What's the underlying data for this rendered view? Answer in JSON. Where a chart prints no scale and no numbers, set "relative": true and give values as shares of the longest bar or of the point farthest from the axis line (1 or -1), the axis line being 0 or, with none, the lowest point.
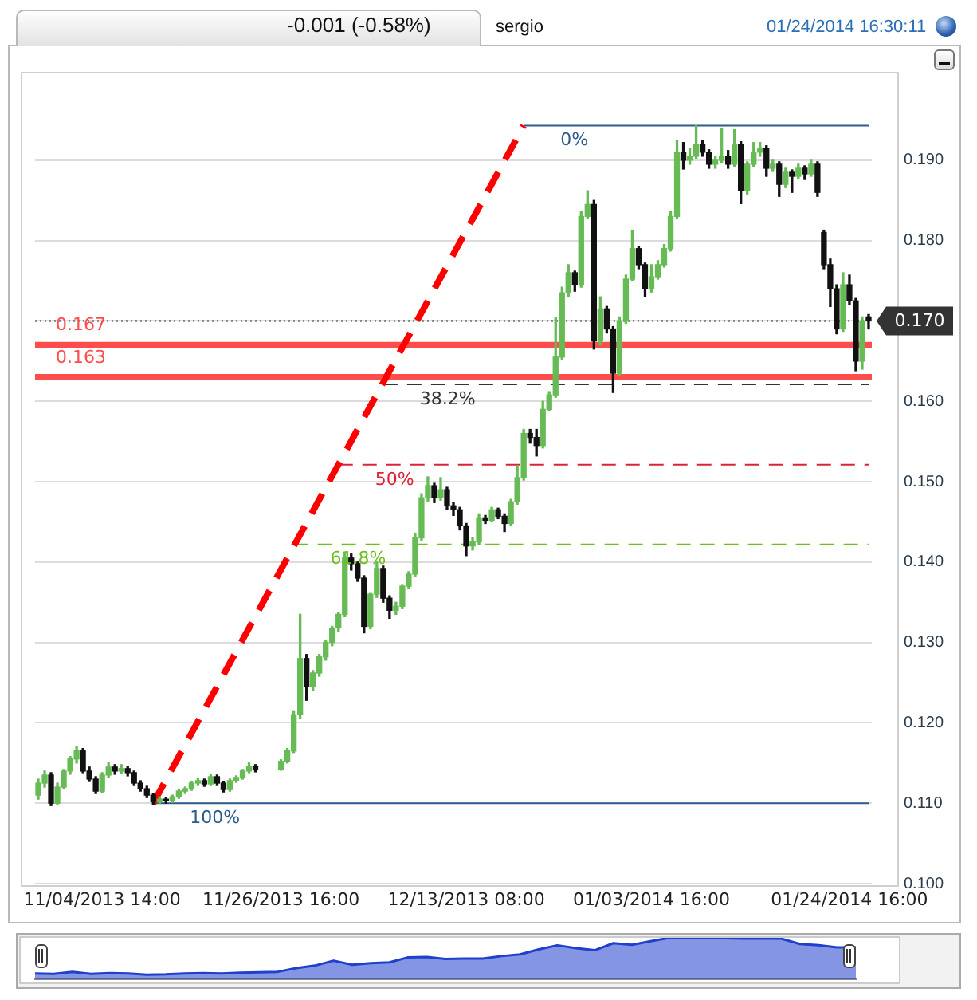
{
  "chart_data": [
    {
      "type": "candlestick",
      "annotations": [
        "-0.001 (-0.58%)",
        "sergio",
        "01/24/2014 16:30:11"
      ],
      "categories": [
        null,
        null,
        null,
        null,
        null,
        null,
        null,
        null,
        null,
        null,
        "11/04/2013 14:00",
        null,
        null,
        null,
        null,
        null,
        null,
        null,
        null,
        null,
        null,
        null,
        null,
        null,
        null,
        null,
        null,
        null,
        null,
        null,
        null,
        null,
        null,
        null,
        null,
        null,
        null,
        null,
        "11/26/2013 16:00",
        null,
        null,
        null,
        null,
        null,
        null,
        null,
        null,
        null,
        null,
        null,
        null,
        null,
        null,
        null,
        null,
        null,
        null,
        null,
        null,
        null,
        null,
        null,
        null,
        null,
        null,
        null,
        null,
        "12/13/2013 08:00",
        null,
        null,
        null,
        null,
        null,
        null,
        null,
        null,
        null,
        null,
        null,
        null,
        null,
        null,
        null,
        null,
        null,
        null,
        null,
        null,
        null,
        null,
        null,
        null,
        null,
        null,
        null,
        null,
        "01/03/2014 16:00",
        null,
        null,
        null,
        null,
        null,
        null,
        null,
        null,
        null,
        null,
        null,
        null,
        null,
        null,
        null,
        null,
        null,
        null,
        null,
        null,
        null,
        null,
        null,
        null,
        null,
        null,
        null,
        null,
        null,
        null,
        "01/24/2014 16:00",
        null,
        null,
        null
      ],
      "ohlc": [
        [
          0.111,
          0.113,
          0.1105,
          0.1125
        ],
        [
          0.1125,
          0.114,
          0.112,
          0.1135
        ],
        [
          0.1135,
          0.1138,
          0.1097,
          0.11
        ],
        [
          0.11,
          0.1125,
          0.1098,
          0.112
        ],
        [
          0.112,
          0.1142,
          0.1118,
          0.114
        ],
        [
          0.114,
          0.1158,
          0.1136,
          0.1155
        ],
        [
          0.1155,
          0.117,
          0.115,
          0.1165
        ],
        [
          0.1165,
          0.1168,
          0.1138,
          0.114
        ],
        [
          0.114,
          0.1145,
          0.1127,
          0.113
        ],
        [
          0.113,
          0.1133,
          0.1112,
          0.1115
        ],
        [
          0.1115,
          0.1138,
          0.1113,
          0.1135
        ],
        [
          0.1135,
          0.115,
          0.1132,
          0.1145
        ],
        [
          0.1145,
          0.1148,
          0.1136,
          0.114
        ],
        [
          0.114,
          0.1148,
          0.1137,
          0.1143
        ],
        [
          0.1143,
          0.1146,
          0.1134,
          0.1138
        ],
        [
          0.1138,
          0.114,
          0.1122,
          0.1125
        ],
        [
          0.1125,
          0.1128,
          0.1115,
          0.1118
        ],
        [
          0.1118,
          0.1121,
          0.1107,
          0.111
        ],
        [
          0.111,
          0.1112,
          0.1098,
          0.1102
        ],
        [
          0.1102,
          0.1108,
          0.11,
          0.1105
        ],
        [
          0.1105,
          0.1107,
          0.11,
          0.1103
        ],
        [
          0.1103,
          0.111,
          0.1101,
          0.1108
        ],
        [
          0.1108,
          0.1117,
          0.1106,
          0.1115
        ],
        [
          0.1115,
          0.112,
          0.1112,
          0.1118
        ],
        [
          0.1118,
          0.1127,
          0.1116,
          0.1125
        ],
        [
          0.1125,
          0.1131,
          0.1122,
          0.1128
        ],
        [
          0.1128,
          0.113,
          0.1121,
          0.1124
        ],
        [
          0.1124,
          0.1136,
          0.1122,
          0.1133
        ],
        [
          0.1133,
          0.1135,
          0.1122,
          0.1125
        ],
        [
          0.1125,
          0.1127,
          0.1114,
          0.1117
        ],
        [
          0.1117,
          0.113,
          0.1115,
          0.1128
        ],
        [
          0.1128,
          0.1134,
          0.1126,
          0.1132
        ],
        [
          0.1132,
          0.1142,
          0.113,
          0.114
        ],
        [
          0.114,
          0.115,
          0.1138,
          0.1146
        ],
        [
          0.1146,
          0.1148,
          0.1139,
          0.1142
        ],
        null,
        null,
        null,
        [
          0.1142,
          0.1154,
          0.1141,
          0.1152
        ],
        [
          0.1152,
          0.1168,
          0.115,
          0.1165
        ],
        [
          0.1165,
          0.1215,
          0.1163,
          0.121
        ],
        [
          0.121,
          0.1335,
          0.1205,
          0.128
        ],
        [
          0.128,
          0.1285,
          0.1228,
          0.1245
        ],
        [
          0.1245,
          0.1265,
          0.124,
          0.1262
        ],
        [
          0.1262,
          0.1285,
          0.1258,
          0.1282
        ],
        [
          0.1282,
          0.1303,
          0.1278,
          0.13
        ],
        [
          0.13,
          0.132,
          0.1296,
          0.1318
        ],
        [
          0.1318,
          0.1337,
          0.1314,
          0.1335
        ],
        [
          0.1335,
          0.1412,
          0.1332,
          0.1405
        ],
        [
          0.1405,
          0.141,
          0.139,
          0.1398
        ],
        [
          0.1398,
          0.14,
          0.1376,
          0.138
        ],
        [
          0.138,
          0.1383,
          0.1312,
          0.132
        ],
        [
          0.132,
          0.1362,
          0.1317,
          0.136
        ],
        [
          0.136,
          0.14,
          0.1356,
          0.1392
        ],
        [
          0.1392,
          0.1395,
          0.135,
          0.1355
        ],
        [
          0.1355,
          0.1358,
          0.133,
          0.134
        ],
        [
          0.134,
          0.135,
          0.1335,
          0.1345
        ],
        [
          0.1345,
          0.1372,
          0.1342,
          0.137
        ],
        [
          0.137,
          0.1388,
          0.1367,
          0.1385
        ],
        [
          0.1385,
          0.1435,
          0.1382,
          0.143
        ],
        [
          0.143,
          0.1485,
          0.1427,
          0.148
        ],
        [
          0.148,
          0.1506,
          0.1476,
          0.1495
        ],
        [
          0.1495,
          0.1498,
          0.1474,
          0.148
        ],
        [
          0.148,
          0.1505,
          0.1477,
          0.149
        ],
        [
          0.149,
          0.1493,
          0.1465,
          0.147
        ],
        [
          0.147,
          0.1474,
          0.1458,
          0.1465
        ],
        [
          0.1465,
          0.1468,
          0.144,
          0.1445
        ],
        [
          0.1445,
          0.1448,
          0.1408,
          0.142
        ],
        [
          0.142,
          0.143,
          0.1415,
          0.1425
        ],
        [
          0.1425,
          0.146,
          0.1422,
          0.1455
        ],
        [
          0.1455,
          0.1458,
          0.1448,
          0.1452
        ],
        [
          0.1452,
          0.1468,
          0.145,
          0.1465
        ],
        [
          0.1465,
          0.1467,
          0.1454,
          0.1457
        ],
        [
          0.1457,
          0.146,
          0.1438,
          0.1448
        ],
        [
          0.1448,
          0.1478,
          0.1446,
          0.1475
        ],
        [
          0.1475,
          0.152,
          0.1472,
          0.1505
        ],
        [
          0.1505,
          0.1565,
          0.1502,
          0.156
        ],
        [
          0.156,
          0.1565,
          0.1548,
          0.1555
        ],
        [
          0.1555,
          0.1565,
          0.1532,
          0.1545
        ],
        [
          0.1545,
          0.16,
          0.1542,
          0.159
        ],
        [
          0.159,
          0.1612,
          0.1588,
          0.1608
        ],
        [
          0.1608,
          0.1704,
          0.1605,
          0.1655
        ],
        [
          0.1655,
          0.1742,
          0.1652,
          0.1735
        ],
        [
          0.1735,
          0.177,
          0.173,
          0.176
        ],
        [
          0.176,
          0.1762,
          0.1737,
          0.1745
        ],
        [
          0.1745,
          0.1836,
          0.1742,
          0.183
        ],
        [
          0.183,
          0.1862,
          0.1828,
          0.1845
        ],
        [
          0.1845,
          0.185,
          0.1665,
          0.1675
        ],
        [
          0.1675,
          0.173,
          0.167,
          0.1715
        ],
        [
          0.1715,
          0.1718,
          0.1685,
          0.169
        ],
        [
          0.169,
          0.1693,
          0.1611,
          0.1635
        ],
        [
          0.1635,
          0.1705,
          0.1632,
          0.17
        ],
        [
          0.17,
          0.1757,
          0.1697,
          0.1752
        ],
        [
          0.1752,
          0.1813,
          0.175,
          0.179
        ],
        [
          0.179,
          0.1793,
          0.1765,
          0.177
        ],
        [
          0.177,
          0.1772,
          0.173,
          0.174
        ],
        [
          0.174,
          0.177,
          0.1736,
          0.1755
        ],
        [
          0.1755,
          0.1775,
          0.1752,
          0.177
        ],
        [
          0.177,
          0.1795,
          0.1767,
          0.179
        ],
        [
          0.179,
          0.1836,
          0.1787,
          0.183
        ],
        [
          0.183,
          0.1925,
          0.1827,
          0.191
        ],
        [
          0.191,
          0.1922,
          0.1889,
          0.19
        ],
        [
          0.19,
          0.1915,
          0.1895,
          0.1905
        ],
        [
          0.1905,
          0.1943,
          0.1902,
          0.192
        ],
        [
          0.192,
          0.1924,
          0.1905,
          0.191
        ],
        [
          0.191,
          0.1913,
          0.189,
          0.1895
        ],
        [
          0.1895,
          0.1905,
          0.189,
          0.19
        ],
        [
          0.19,
          0.194,
          0.1897,
          0.1905
        ],
        [
          0.1905,
          0.1912,
          0.189,
          0.1895
        ],
        [
          0.1895,
          0.1938,
          0.1892,
          0.192
        ],
        [
          0.192,
          0.1923,
          0.1846,
          0.1862
        ],
        [
          0.1862,
          0.1898,
          0.1858,
          0.1895
        ],
        [
          0.1895,
          0.1922,
          0.1892,
          0.191
        ],
        [
          0.191,
          0.1922,
          0.1905,
          0.1915
        ],
        [
          0.1915,
          0.1918,
          0.188,
          0.189
        ],
        [
          0.189,
          0.19,
          0.1886,
          0.1895
        ],
        [
          0.1895,
          0.1898,
          0.1855,
          0.187
        ],
        [
          0.187,
          0.189,
          0.1866,
          0.1885
        ],
        [
          0.1885,
          0.1888,
          0.186,
          0.188
        ],
        [
          0.188,
          0.1895,
          0.1877,
          0.189
        ],
        [
          0.189,
          0.1893,
          0.1876,
          0.1883
        ],
        [
          0.1883,
          0.19,
          0.188,
          0.1895
        ],
        [
          0.1895,
          0.1898,
          0.1855,
          0.186
        ],
        [
          0.181,
          0.1813,
          0.1765,
          0.177
        ],
        [
          0.177,
          0.1777,
          0.1718,
          0.174
        ],
        [
          0.174,
          0.1745,
          0.1684,
          0.169
        ],
        [
          0.169,
          0.176,
          0.1687,
          0.1745
        ],
        [
          0.1745,
          0.1757,
          0.172,
          0.1725
        ],
        [
          0.1725,
          0.1728,
          0.1638,
          0.165
        ],
        [
          0.165,
          0.1705,
          0.164,
          0.17
        ],
        [
          0.1705,
          0.1708,
          0.169,
          0.17
        ]
      ],
      "colors": [
        "#66bb55",
        "#66bb55",
        "#111111",
        "#66bb55",
        "#66bb55",
        "#66bb55",
        "#66bb55",
        "#111111",
        "#111111",
        "#111111",
        "#66bb55",
        "#66bb55",
        "#111111",
        "#66bb55",
        "#111111",
        "#111111",
        "#111111",
        "#111111",
        "#111111",
        "#66bb55",
        "#111111",
        "#66bb55",
        "#66bb55",
        "#66bb55",
        "#66bb55",
        "#66bb55",
        "#111111",
        "#66bb55",
        "#111111",
        "#111111",
        "#66bb55",
        "#66bb55",
        "#66bb55",
        "#66bb55",
        "#111111",
        null,
        null,
        null,
        "#66bb55",
        "#66bb55",
        "#66bb55",
        "#66bb55",
        "#111111",
        "#66bb55",
        "#66bb55",
        "#66bb55",
        "#66bb55",
        "#66bb55",
        "#66bb55",
        "#111111",
        "#111111",
        "#111111",
        "#66bb55",
        "#66bb55",
        "#111111",
        "#111111",
        "#66bb55",
        "#66bb55",
        "#66bb55",
        "#66bb55",
        "#66bb55",
        "#66bb55",
        "#111111",
        "#66bb55",
        "#111111",
        "#111111",
        "#111111",
        "#111111",
        "#66bb55",
        "#66bb55",
        "#111111",
        "#66bb55",
        "#111111",
        "#111111",
        "#66bb55",
        "#66bb55",
        "#66bb55",
        "#111111",
        "#111111",
        "#66bb55",
        "#66bb55",
        "#66bb55",
        "#66bb55",
        "#66bb55",
        "#111111",
        "#66bb55",
        "#66bb55",
        "#111111",
        "#66bb55",
        "#111111",
        "#111111",
        "#66bb55",
        "#66bb55",
        "#66bb55",
        "#111111",
        "#111111",
        "#66bb55",
        "#66bb55",
        "#66bb55",
        "#66bb55",
        "#66bb55",
        "#111111",
        "#66bb55",
        "#66bb55",
        "#111111",
        "#111111",
        "#66bb55",
        "#66bb55",
        "#111111",
        "#66bb55",
        "#111111",
        "#66bb55",
        "#66bb55",
        "#66bb55",
        "#111111",
        "#66bb55",
        "#111111",
        "#66bb55",
        "#111111",
        "#66bb55",
        "#111111",
        "#66bb55",
        "#111111",
        "#111111",
        "#111111",
        "#111111",
        "#66bb55",
        "#111111",
        "#111111",
        "#66bb55",
        "#111111"
      ],
      "series": [
        {
          "type": "line",
          "color": "#ff0000",
          "line_style": "dashed",
          "values": [
            null,
            null,
            null,
            null,
            null,
            null,
            null,
            null,
            null,
            null,
            null,
            null,
            null,
            null,
            null,
            null,
            null,
            null,
            0.11,
            null,
            null,
            null,
            null,
            null,
            null,
            null,
            null,
            null,
            null,
            null,
            null,
            null,
            null,
            null,
            null,
            null,
            null,
            null,
            null,
            null,
            null,
            null,
            null,
            null,
            null,
            null,
            null,
            null,
            null,
            null,
            null,
            null,
            null,
            null,
            null,
            null,
            null,
            null,
            null,
            null,
            null,
            null,
            null,
            null,
            null,
            null,
            null,
            null,
            null,
            null,
            null,
            null,
            null,
            null,
            null,
            null,
            0.1943,
            null,
            null,
            null,
            null,
            null,
            null,
            null,
            null,
            null,
            null,
            null,
            null,
            null,
            null,
            null,
            null,
            null,
            null,
            null,
            null,
            null,
            null,
            null,
            null,
            null,
            null,
            null,
            null,
            null,
            null,
            null,
            null,
            null,
            null,
            null,
            null,
            null,
            null,
            null,
            null,
            null,
            null,
            null,
            null,
            null,
            null,
            null,
            null,
            null,
            null,
            null,
            null,
            null,
            null
          ]
        },
        {
          "type": "line",
          "name": "0%",
          "color": "#2f5b8c",
          "line_style": "solid",
          "values": [
            null,
            null,
            null,
            null,
            null,
            null,
            null,
            null,
            null,
            null,
            null,
            null,
            null,
            null,
            null,
            null,
            null,
            null,
            null,
            null,
            null,
            null,
            null,
            null,
            null,
            null,
            null,
            null,
            null,
            null,
            null,
            null,
            null,
            null,
            null,
            null,
            null,
            null,
            null,
            null,
            null,
            null,
            null,
            null,
            null,
            null,
            null,
            null,
            null,
            null,
            null,
            null,
            null,
            null,
            null,
            null,
            null,
            null,
            null,
            null,
            null,
            null,
            null,
            null,
            null,
            null,
            null,
            null,
            null,
            null,
            null,
            null,
            null,
            null,
            null,
            null,
            0.1943,
            null,
            null,
            null,
            null,
            null,
            null,
            null,
            null,
            null,
            null,
            null,
            null,
            null,
            null,
            null,
            null,
            null,
            null,
            null,
            null,
            null,
            null,
            null,
            null,
            null,
            null,
            null,
            null,
            null,
            null,
            null,
            null,
            null,
            null,
            null,
            null,
            null,
            null,
            null,
            null,
            null,
            null,
            null,
            null,
            null,
            null,
            null,
            null,
            null,
            null,
            null,
            null,
            null,
            0.1943
          ]
        },
        {
          "type": "line",
          "name": "38.2%",
          "color": "#333333",
          "line_style": "dashed",
          "values": [
            null,
            null,
            null,
            null,
            null,
            null,
            null,
            null,
            null,
            null,
            null,
            null,
            null,
            null,
            null,
            null,
            null,
            null,
            null,
            null,
            null,
            null,
            null,
            null,
            null,
            null,
            null,
            null,
            null,
            null,
            null,
            null,
            null,
            null,
            null,
            null,
            null,
            null,
            null,
            null,
            null,
            null,
            null,
            null,
            null,
            null,
            null,
            null,
            null,
            null,
            null,
            null,
            null,
            null,
            0.1621,
            null,
            null,
            null,
            null,
            null,
            null,
            null,
            null,
            null,
            null,
            null,
            null,
            null,
            null,
            null,
            null,
            null,
            null,
            null,
            null,
            null,
            null,
            null,
            null,
            null,
            null,
            null,
            null,
            null,
            null,
            null,
            null,
            null,
            null,
            null,
            null,
            null,
            null,
            null,
            null,
            null,
            null,
            null,
            null,
            null,
            null,
            null,
            null,
            null,
            null,
            null,
            null,
            null,
            null,
            null,
            null,
            null,
            null,
            null,
            null,
            null,
            null,
            null,
            null,
            null,
            null,
            null,
            null,
            null,
            null,
            null,
            null,
            null,
            null,
            null,
            0.1621
          ]
        },
        {
          "type": "line",
          "name": "50%",
          "color": "#d9243a",
          "line_style": "dashed",
          "values": [
            null,
            null,
            null,
            null,
            null,
            null,
            null,
            null,
            null,
            null,
            null,
            null,
            null,
            null,
            null,
            null,
            null,
            null,
            null,
            null,
            null,
            null,
            null,
            null,
            null,
            null,
            null,
            null,
            null,
            null,
            null,
            null,
            null,
            null,
            null,
            null,
            null,
            null,
            null,
            null,
            null,
            null,
            null,
            null,
            null,
            null,
            null,
            0.1521,
            null,
            null,
            null,
            null,
            null,
            null,
            null,
            null,
            null,
            null,
            null,
            null,
            null,
            null,
            null,
            null,
            null,
            null,
            null,
            null,
            null,
            null,
            null,
            null,
            null,
            null,
            null,
            null,
            null,
            null,
            null,
            null,
            null,
            null,
            null,
            null,
            null,
            null,
            null,
            null,
            null,
            null,
            null,
            null,
            null,
            null,
            null,
            null,
            null,
            null,
            null,
            null,
            null,
            null,
            null,
            null,
            null,
            null,
            null,
            null,
            null,
            null,
            null,
            null,
            null,
            null,
            null,
            null,
            null,
            null,
            null,
            null,
            null,
            null,
            null,
            null,
            null,
            null,
            null,
            null,
            null,
            null,
            0.1521
          ]
        },
        {
          "type": "line",
          "name": "61.8%",
          "color": "#6cbf1f",
          "line_style": "dashed",
          "values": [
            null,
            null,
            null,
            null,
            null,
            null,
            null,
            null,
            null,
            null,
            null,
            null,
            null,
            null,
            null,
            null,
            null,
            null,
            null,
            null,
            null,
            null,
            null,
            null,
            null,
            null,
            null,
            null,
            null,
            null,
            null,
            null,
            null,
            null,
            null,
            null,
            null,
            null,
            null,
            null,
            0.1422,
            null,
            null,
            null,
            null,
            null,
            null,
            null,
            null,
            null,
            null,
            null,
            null,
            null,
            null,
            null,
            null,
            null,
            null,
            null,
            null,
            null,
            null,
            null,
            null,
            null,
            null,
            null,
            null,
            null,
            null,
            null,
            null,
            null,
            null,
            null,
            null,
            null,
            null,
            null,
            null,
            null,
            null,
            null,
            null,
            null,
            null,
            null,
            null,
            null,
            null,
            null,
            null,
            null,
            null,
            null,
            null,
            null,
            null,
            null,
            null,
            null,
            null,
            null,
            null,
            null,
            null,
            null,
            null,
            null,
            null,
            null,
            null,
            null,
            null,
            null,
            null,
            null,
            null,
            null,
            null,
            null,
            null,
            null,
            null,
            null,
            null,
            null,
            null,
            null,
            0.1422
          ]
        },
        {
          "type": "line",
          "name": "100%",
          "color": "#2f5b8c",
          "line_style": "solid",
          "values": [
            null,
            null,
            null,
            null,
            null,
            null,
            null,
            null,
            null,
            null,
            null,
            null,
            null,
            null,
            null,
            null,
            null,
            null,
            0.11,
            null,
            null,
            null,
            null,
            null,
            null,
            null,
            null,
            null,
            null,
            null,
            null,
            null,
            null,
            null,
            null,
            null,
            null,
            null,
            null,
            null,
            null,
            null,
            null,
            null,
            null,
            null,
            null,
            null,
            null,
            null,
            null,
            null,
            null,
            null,
            null,
            null,
            null,
            null,
            null,
            null,
            null,
            null,
            null,
            null,
            null,
            null,
            null,
            null,
            null,
            null,
            null,
            null,
            null,
            null,
            null,
            null,
            null,
            null,
            null,
            null,
            null,
            null,
            null,
            null,
            null,
            null,
            null,
            null,
            null,
            null,
            null,
            null,
            null,
            null,
            null,
            null,
            null,
            null,
            null,
            null,
            null,
            null,
            null,
            null,
            null,
            null,
            null,
            null,
            null,
            null,
            null,
            null,
            null,
            null,
            null,
            null,
            null,
            null,
            null,
            null,
            null,
            null,
            null,
            null,
            null,
            null,
            null,
            null,
            null,
            null,
            0.11
          ]
        }
      ],
      "ylim": [
        0.1,
        0.201
      ],
      "yticks": [
        {
          "value": 0.1,
          "label": "0.100"
        },
        {
          "value": 0.11,
          "label": "0.110"
        },
        {
          "value": 0.12,
          "label": "0.120"
        },
        {
          "value": 0.13,
          "label": "0.130"
        },
        {
          "value": 0.14,
          "label": "0.140"
        },
        {
          "value": 0.15,
          "label": "0.150"
        },
        {
          "value": 0.16,
          "label": "0.160"
        },
        {
          "value": 0.17,
          "label": null
        },
        {
          "value": 0.18,
          "label": "0.180"
        },
        {
          "value": 0.19,
          "label": "0.190"
        }
      ],
      "grid": "y",
      "ref_lines": [
        {
          "axis": "y",
          "value": 0.167,
          "label": "0.167",
          "color": "#ff4d4d",
          "line_style": "solid"
        },
        {
          "axis": "y",
          "value": 0.163,
          "label": "0.163",
          "color": "#ff4d4d",
          "line_style": "solid"
        },
        {
          "axis": "y",
          "value": 0.17,
          "label": "0.170",
          "color": "#333333",
          "line_style": "dotted"
        }
      ]
    },
    {
      "type": "area",
      "relative": true,
      "color": "#1f3fcc",
      "categories": [
        null,
        null,
        null,
        null,
        null,
        null,
        null,
        null,
        null,
        null,
        null,
        null,
        null,
        null,
        null,
        null,
        null,
        null,
        null,
        null,
        null,
        null,
        null,
        null,
        null,
        null,
        null,
        null,
        null,
        null,
        null,
        null,
        null,
        null,
        null,
        null,
        null,
        null,
        null,
        null,
        null,
        null,
        null,
        null,
        null
      ],
      "values": [
        0.14,
        0.13,
        0.18,
        0.13,
        0.15,
        0.14,
        0.11,
        0.12,
        0.14,
        0.15,
        0.14,
        0.16,
        0.17,
        0.18,
        0.27,
        0.33,
        0.45,
        0.35,
        0.39,
        0.41,
        0.53,
        0.54,
        0.49,
        0.5,
        0.5,
        0.56,
        0.6,
        0.72,
        0.82,
        0.75,
        0.7,
        0.87,
        0.83,
        0.92,
        1,
        0.99,
        0.99,
        0.99,
        0.98,
        0.98,
        0.98,
        0.85,
        0.82,
        0.77,
        0.77
      ]
    }
  ]
}
